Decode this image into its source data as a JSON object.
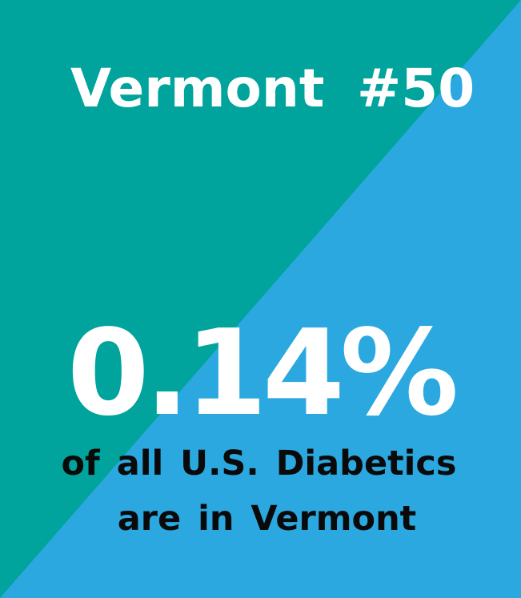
{
  "colors": {
    "teal": "#00a49c",
    "blue": "#2ba8e0",
    "headline_text": "#ffffff",
    "caption_text": "#0a0a0a"
  },
  "header": {
    "state": "Vermont",
    "rank": "#50"
  },
  "stat": {
    "value": "0.14%",
    "caption_line_1": "of all U.S. Diabetics",
    "caption_line_2": "are in Vermont"
  }
}
